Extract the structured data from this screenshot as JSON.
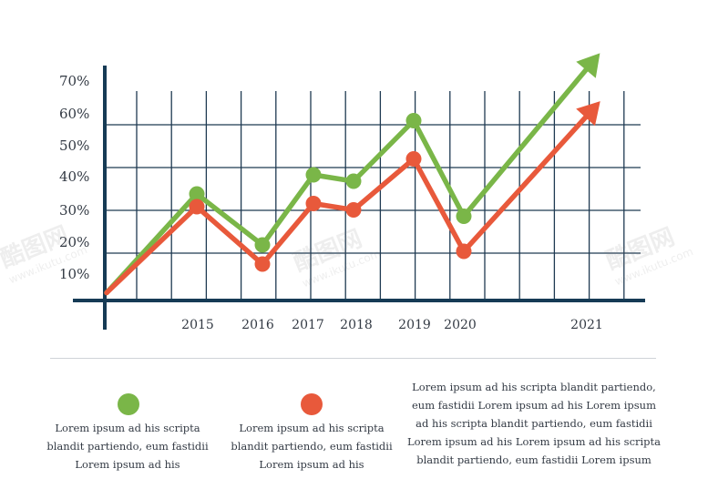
{
  "chart_data": {
    "type": "line",
    "x": [
      "",
      "2015",
      "2016",
      "2017",
      "2018",
      "2019",
      "2020",
      "2021"
    ],
    "y_ticks": [
      "10%",
      "20%",
      "30%",
      "40%",
      "50%",
      "60%",
      "70%"
    ],
    "series": [
      {
        "color": "#7ab648",
        "values": [
          1,
          32,
          16,
          38,
          36,
          55,
          25,
          74
        ]
      },
      {
        "color": "#e8593b",
        "values": [
          1,
          28,
          10,
          29,
          27,
          43,
          14,
          59
        ]
      }
    ],
    "end_arrows": true,
    "grid": true
  },
  "legend": [
    {
      "color": "#7ab648",
      "text_lines": [
        "Lorem ipsum ad his scripta",
        "blandit partiendo, eum fastidii",
        "Lorem ipsum ad his"
      ]
    },
    {
      "color": "#e8593b",
      "text_lines": [
        "Lorem ipsum ad his scripta",
        "blandit partiendo, eum fastidii",
        "Lorem ipsum ad his"
      ]
    }
  ],
  "description_lines": [
    "Lorem ipsum ad his scripta blandit partiendo,",
    "eum fastidii Lorem ipsum ad his Lorem ipsum",
    "ad his scripta blandit partiendo, eum fastidii",
    "Lorem ipsum ad his Lorem ipsum ad his scripta",
    "blandit partiendo, eum fastidii Lorem ipsum"
  ],
  "watermark": {
    "brand": "酷图网",
    "url": "www.ikutu.com"
  }
}
